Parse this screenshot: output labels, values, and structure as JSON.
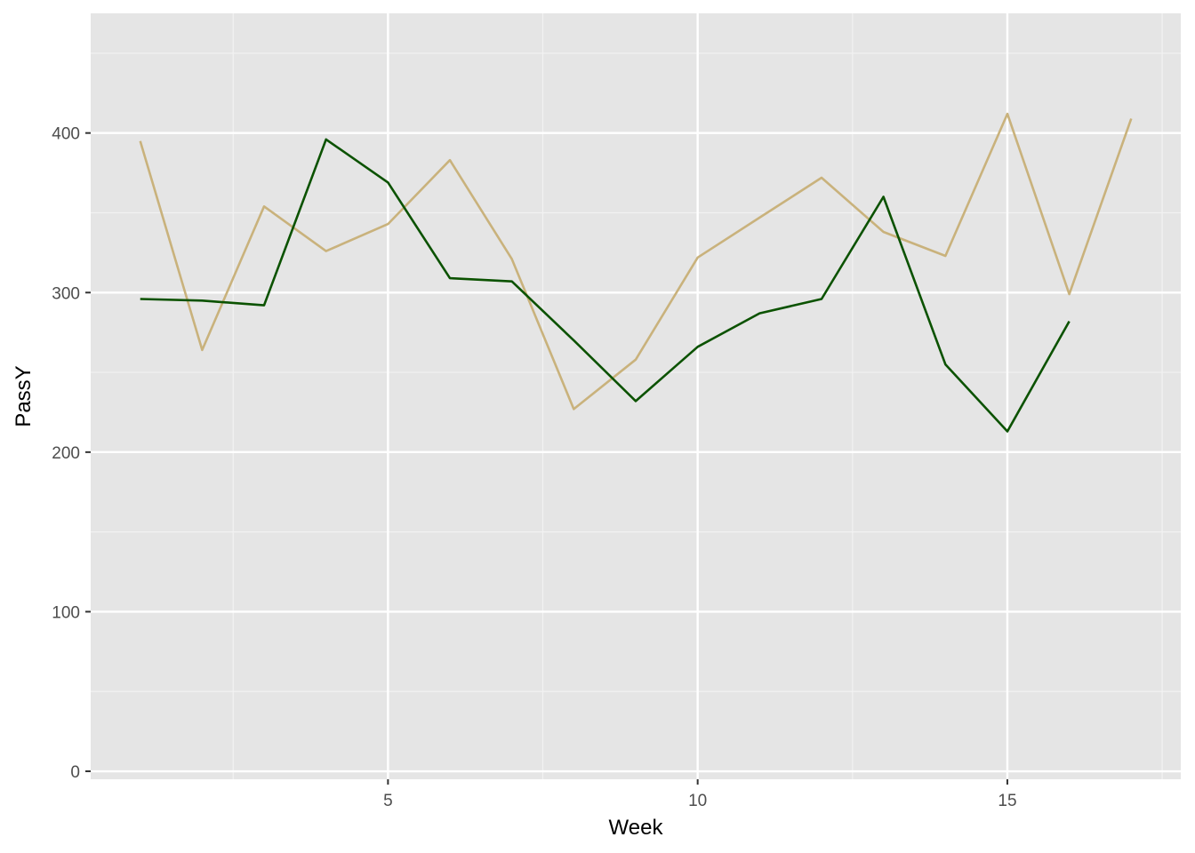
{
  "chart_data": {
    "type": "line",
    "xlabel": "Week",
    "ylabel": "PassY",
    "xlim": [
      0.2,
      17.8
    ],
    "ylim": [
      -5,
      475
    ],
    "x_ticks": [
      5,
      10,
      15
    ],
    "x_minor_ticks": [
      2.5,
      7.5,
      12.5,
      17.5
    ],
    "y_ticks": [
      0,
      100,
      200,
      300,
      400
    ],
    "y_minor_ticks": [
      50,
      150,
      250,
      350,
      450
    ],
    "grid": true,
    "legend": "none",
    "background": "#e5e5e5",
    "series": [
      {
        "color": "#c9b27c",
        "x": [
          1,
          2,
          3,
          4,
          5,
          6,
          7,
          8,
          9,
          10,
          11,
          12,
          13,
          14,
          15,
          16,
          17
        ],
        "values": [
          395,
          264,
          354,
          326,
          343,
          383,
          321,
          227,
          258,
          322,
          347,
          372,
          338,
          323,
          412,
          299,
          409
        ]
      },
      {
        "color": "#0b5200",
        "x": [
          1,
          2,
          3,
          4,
          5,
          6,
          7,
          8,
          9,
          10,
          11,
          12,
          13,
          14,
          15,
          16
        ],
        "values": [
          296,
          295,
          292,
          396,
          369,
          309,
          307,
          270,
          232,
          266,
          287,
          296,
          360,
          255,
          213,
          282
        ]
      }
    ]
  }
}
